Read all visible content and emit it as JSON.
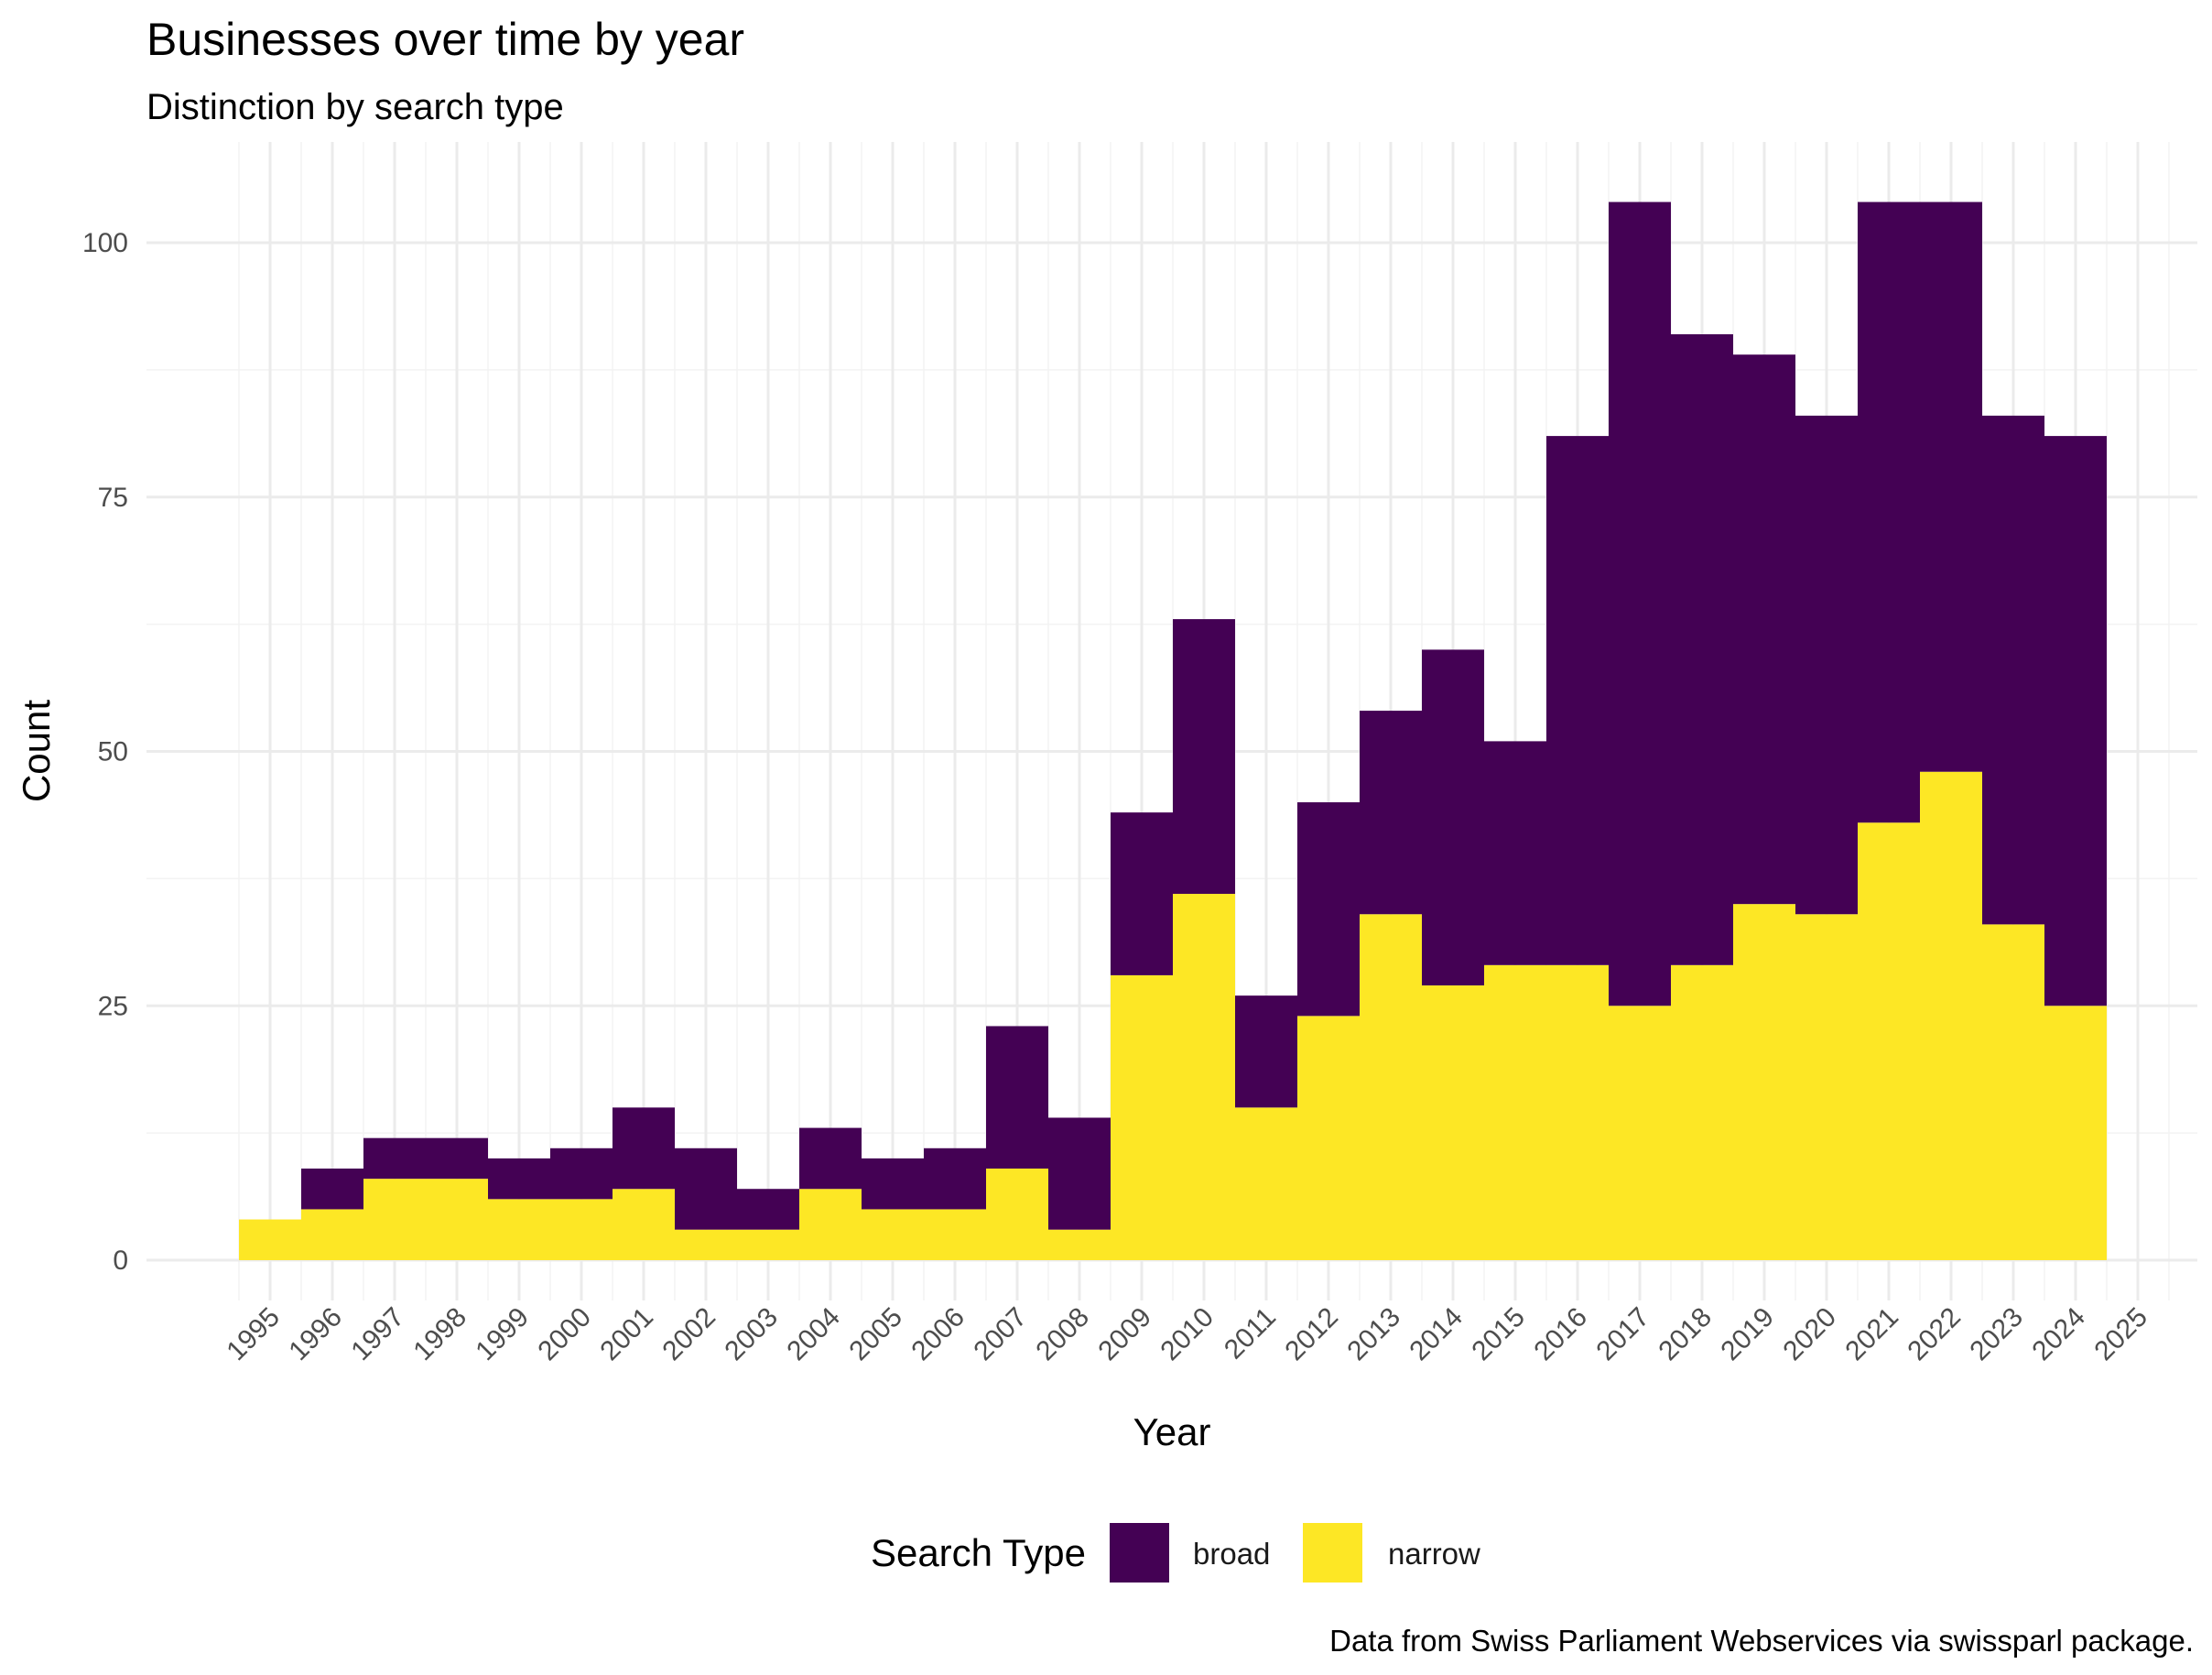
{
  "chart_data": {
    "type": "bar",
    "stacked": true,
    "title": "Businesses over time by year",
    "subtitle": "Distinction by search type",
    "xlabel": "Year",
    "ylabel": "Count",
    "caption": "Data from Swiss Parliament Webservices via swissparl package.",
    "legend_title": "Search Type",
    "legend_position": "bottom",
    "grid": true,
    "ylim": [
      -5,
      108
    ],
    "y_ticks": [
      0,
      25,
      50,
      75,
      100
    ],
    "x_tick_labels": [
      "1995",
      "1996",
      "1997",
      "1998",
      "1999",
      "2000",
      "2001",
      "2002",
      "2003",
      "2004",
      "2005",
      "2006",
      "2007",
      "2008",
      "2009",
      "2010",
      "2011",
      "2012",
      "2013",
      "2014",
      "2015",
      "2016",
      "2017",
      "2018",
      "2019",
      "2020",
      "2021",
      "2022",
      "2023",
      "2024",
      "2025"
    ],
    "categories": [
      "1995",
      "1996",
      "1997",
      "1998",
      "1999",
      "2000",
      "2001",
      "2002",
      "2003",
      "2004",
      "2005",
      "2006",
      "2007",
      "2008",
      "2009",
      "2010",
      "2011",
      "2012",
      "2013",
      "2014",
      "2015",
      "2016",
      "2017",
      "2018",
      "2019",
      "2020",
      "2021",
      "2022",
      "2023",
      "2024"
    ],
    "series": [
      {
        "name": "narrow",
        "color": "#FDE725",
        "values": [
          4,
          5,
          8,
          8,
          6,
          6,
          7,
          3,
          3,
          7,
          5,
          5,
          9,
          3,
          28,
          36,
          15,
          24,
          34,
          27,
          29,
          29,
          25,
          29,
          35,
          34,
          43,
          48,
          33,
          25
        ]
      },
      {
        "name": "broad",
        "color": "#440154",
        "values": [
          0,
          4,
          4,
          4,
          4,
          5,
          8,
          8,
          4,
          6,
          5,
          6,
          14,
          11,
          16,
          27,
          11,
          21,
          20,
          33,
          22,
          52,
          79,
          62,
          54,
          49,
          61,
          56,
          50,
          56
        ]
      }
    ],
    "legend_order": [
      "broad",
      "narrow"
    ]
  }
}
